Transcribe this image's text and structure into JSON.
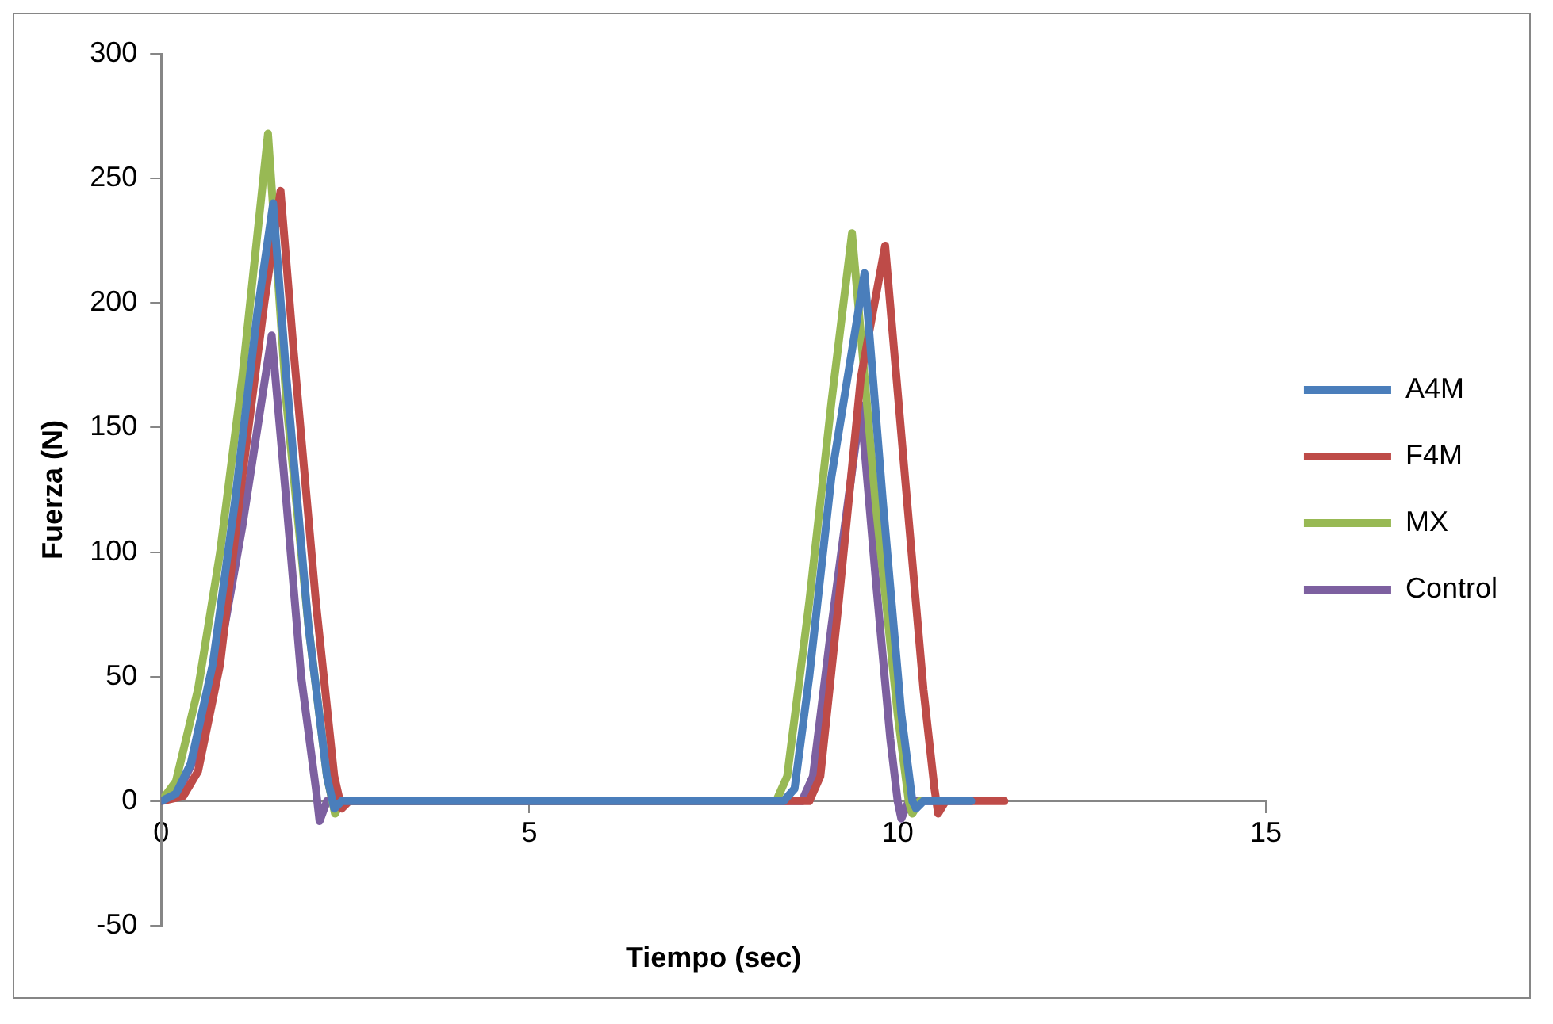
{
  "chart_data": {
    "type": "line",
    "xlabel": "Tiempo (sec)",
    "ylabel": "Fuerza (N)",
    "xlim": [
      0,
      15
    ],
    "xticks": [
      0,
      5,
      10,
      15
    ],
    "ylim": [
      -50,
      300
    ],
    "yticks": [
      -50,
      0,
      50,
      100,
      150,
      200,
      250,
      300
    ],
    "grid": false,
    "legend": "right",
    "marker": "none",
    "line_style": "solid",
    "series": [
      {
        "name": "A4M",
        "color": "#4a7ebb",
        "x": [
          0,
          0.2,
          0.4,
          0.7,
          1.0,
          1.3,
          1.52,
          1.7,
          2.0,
          2.25,
          2.35,
          2.45,
          8.45,
          8.6,
          8.8,
          9.1,
          9.55,
          9.8,
          10.05,
          10.2,
          10.25,
          10.35,
          11.0
        ],
        "values": [
          0,
          3,
          15,
          55,
          120,
          195,
          240,
          170,
          70,
          10,
          -3,
          0,
          0,
          5,
          50,
          130,
          212,
          120,
          35,
          0,
          -3,
          0,
          0
        ]
      },
      {
        "name": "F4M",
        "color": "#be4b48",
        "x": [
          0,
          0.3,
          0.5,
          0.8,
          1.1,
          1.4,
          1.62,
          1.8,
          2.1,
          2.35,
          2.45,
          2.55,
          8.8,
          8.95,
          9.2,
          9.5,
          9.83,
          10.1,
          10.35,
          10.5,
          10.55,
          10.65,
          11.45
        ],
        "values": [
          0,
          2,
          12,
          55,
          130,
          200,
          245,
          180,
          80,
          10,
          -3,
          0,
          0,
          10,
          80,
          170,
          223,
          130,
          45,
          5,
          -5,
          0,
          0
        ]
      },
      {
        "name": "MX",
        "color": "#98b954",
        "x": [
          0,
          0.2,
          0.5,
          0.8,
          1.1,
          1.45,
          1.7,
          2.0,
          2.25,
          2.36,
          2.45,
          8.35,
          8.5,
          8.8,
          9.1,
          9.38,
          9.7,
          10.0,
          10.15,
          10.2,
          10.3
        ],
        "values": [
          0,
          8,
          45,
          100,
          170,
          268,
          160,
          70,
          10,
          -5,
          0,
          0,
          10,
          80,
          160,
          228,
          120,
          35,
          0,
          -5,
          0
        ]
      },
      {
        "name": "Control",
        "color": "#7d60a0",
        "x": [
          0,
          0.2,
          0.5,
          0.8,
          1.1,
          1.5,
          1.7,
          1.9,
          2.1,
          2.15,
          2.25,
          8.7,
          8.85,
          9.1,
          9.5,
          9.7,
          9.9,
          10.0,
          10.05,
          10.15,
          10.5
        ],
        "values": [
          0,
          2,
          20,
          60,
          110,
          187,
          120,
          50,
          5,
          -8,
          0,
          0,
          10,
          70,
          159,
          90,
          25,
          0,
          -7,
          0,
          0
        ]
      }
    ]
  }
}
